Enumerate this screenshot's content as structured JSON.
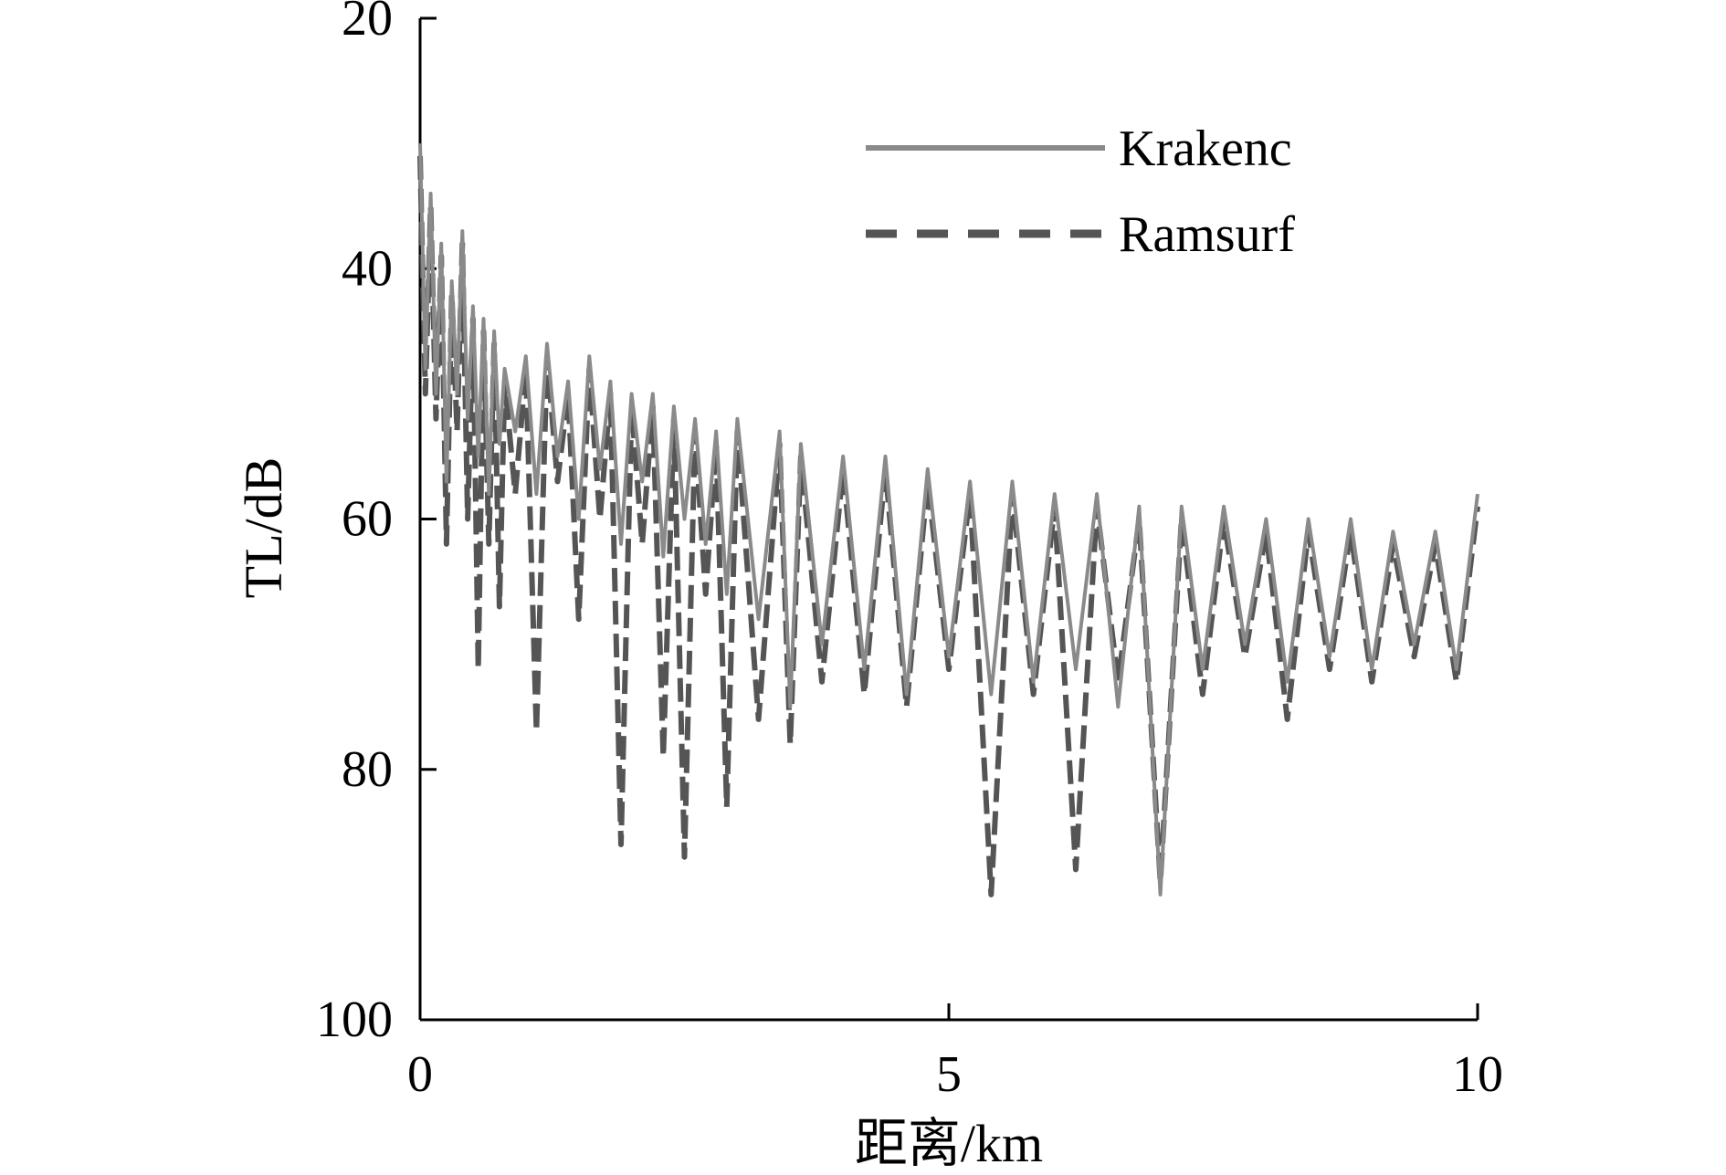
{
  "chart_data": {
    "type": "line",
    "xlabel": "距离/km",
    "ylabel": "TL/dB",
    "xlim": [
      0,
      10
    ],
    "ylim": [
      20,
      100
    ],
    "y_inverted": true,
    "xticks": [
      0,
      5,
      10
    ],
    "xtick_labels": [
      "0",
      "5",
      "10"
    ],
    "yticks": [
      20,
      40,
      60,
      80,
      100
    ],
    "ytick_labels": [
      "20",
      "40",
      "60",
      "80",
      "100"
    ],
    "grid": false,
    "legend_position": "top-right",
    "series": [
      {
        "name": "Krakenc",
        "style": "solid",
        "color": "#8a8a8a",
        "x": [
          0,
          0.05,
          0.1,
          0.15,
          0.2,
          0.25,
          0.3,
          0.35,
          0.4,
          0.45,
          0.5,
          0.55,
          0.6,
          0.65,
          0.7,
          0.75,
          0.8,
          0.9,
          1.0,
          1.1,
          1.2,
          1.3,
          1.4,
          1.5,
          1.6,
          1.7,
          1.8,
          1.9,
          2.0,
          2.1,
          2.2,
          2.3,
          2.4,
          2.5,
          2.6,
          2.7,
          2.8,
          2.9,
          3.0,
          3.2,
          3.4,
          3.5,
          3.6,
          3.8,
          4.0,
          4.2,
          4.4,
          4.6,
          4.8,
          5.0,
          5.2,
          5.4,
          5.6,
          5.8,
          6.0,
          6.2,
          6.4,
          6.6,
          6.8,
          7.0,
          7.2,
          7.4,
          7.6,
          7.8,
          8.0,
          8.2,
          8.4,
          8.6,
          8.8,
          9.0,
          9.2,
          9.4,
          9.6,
          9.8,
          10.0
        ],
        "y": [
          30,
          48,
          34,
          50,
          38,
          57,
          41,
          50,
          37,
          52,
          43,
          55,
          44,
          58,
          45,
          54,
          48,
          53,
          47,
          58,
          46,
          55,
          49,
          60,
          47,
          56,
          49,
          62,
          50,
          57,
          50,
          63,
          51,
          60,
          52,
          62,
          53,
          66,
          52,
          68,
          53,
          75,
          54,
          70,
          55,
          72,
          55,
          74,
          56,
          71,
          57,
          74,
          57,
          73,
          58,
          72,
          58,
          75,
          59,
          90,
          59,
          72,
          59,
          70,
          60,
          73,
          60,
          71,
          60,
          72,
          61,
          70,
          61,
          72,
          58
        ]
      },
      {
        "name": "Ramsurf",
        "style": "dashed",
        "color": "#555555",
        "x": [
          0,
          0.05,
          0.1,
          0.15,
          0.2,
          0.25,
          0.3,
          0.35,
          0.4,
          0.45,
          0.5,
          0.55,
          0.6,
          0.65,
          0.7,
          0.75,
          0.8,
          0.9,
          1.0,
          1.1,
          1.2,
          1.3,
          1.4,
          1.5,
          1.6,
          1.7,
          1.8,
          1.9,
          2.0,
          2.1,
          2.2,
          2.3,
          2.4,
          2.5,
          2.6,
          2.7,
          2.8,
          2.9,
          3.0,
          3.2,
          3.4,
          3.5,
          3.6,
          3.8,
          4.0,
          4.2,
          4.4,
          4.6,
          4.8,
          5.0,
          5.2,
          5.4,
          5.6,
          5.8,
          6.0,
          6.2,
          6.4,
          6.6,
          6.8,
          7.0,
          7.2,
          7.4,
          7.6,
          7.8,
          8.0,
          8.2,
          8.4,
          8.6,
          8.8,
          9.0,
          9.2,
          9.4,
          9.6,
          9.8,
          10.0
        ],
        "y": [
          31,
          50,
          35,
          52,
          39,
          62,
          42,
          53,
          38,
          60,
          44,
          72,
          45,
          62,
          46,
          67,
          49,
          58,
          48,
          77,
          47,
          57,
          50,
          68,
          48,
          60,
          50,
          86,
          51,
          62,
          51,
          79,
          52,
          87,
          53,
          66,
          54,
          83,
          53,
          76,
          54,
          78,
          55,
          73,
          56,
          74,
          56,
          75,
          57,
          72,
          58,
          90,
          58,
          74,
          59,
          88,
          59,
          73,
          60,
          89,
          60,
          74,
          60,
          71,
          61,
          76,
          61,
          72,
          61,
          73,
          62,
          71,
          62,
          73,
          59
        ]
      }
    ]
  }
}
